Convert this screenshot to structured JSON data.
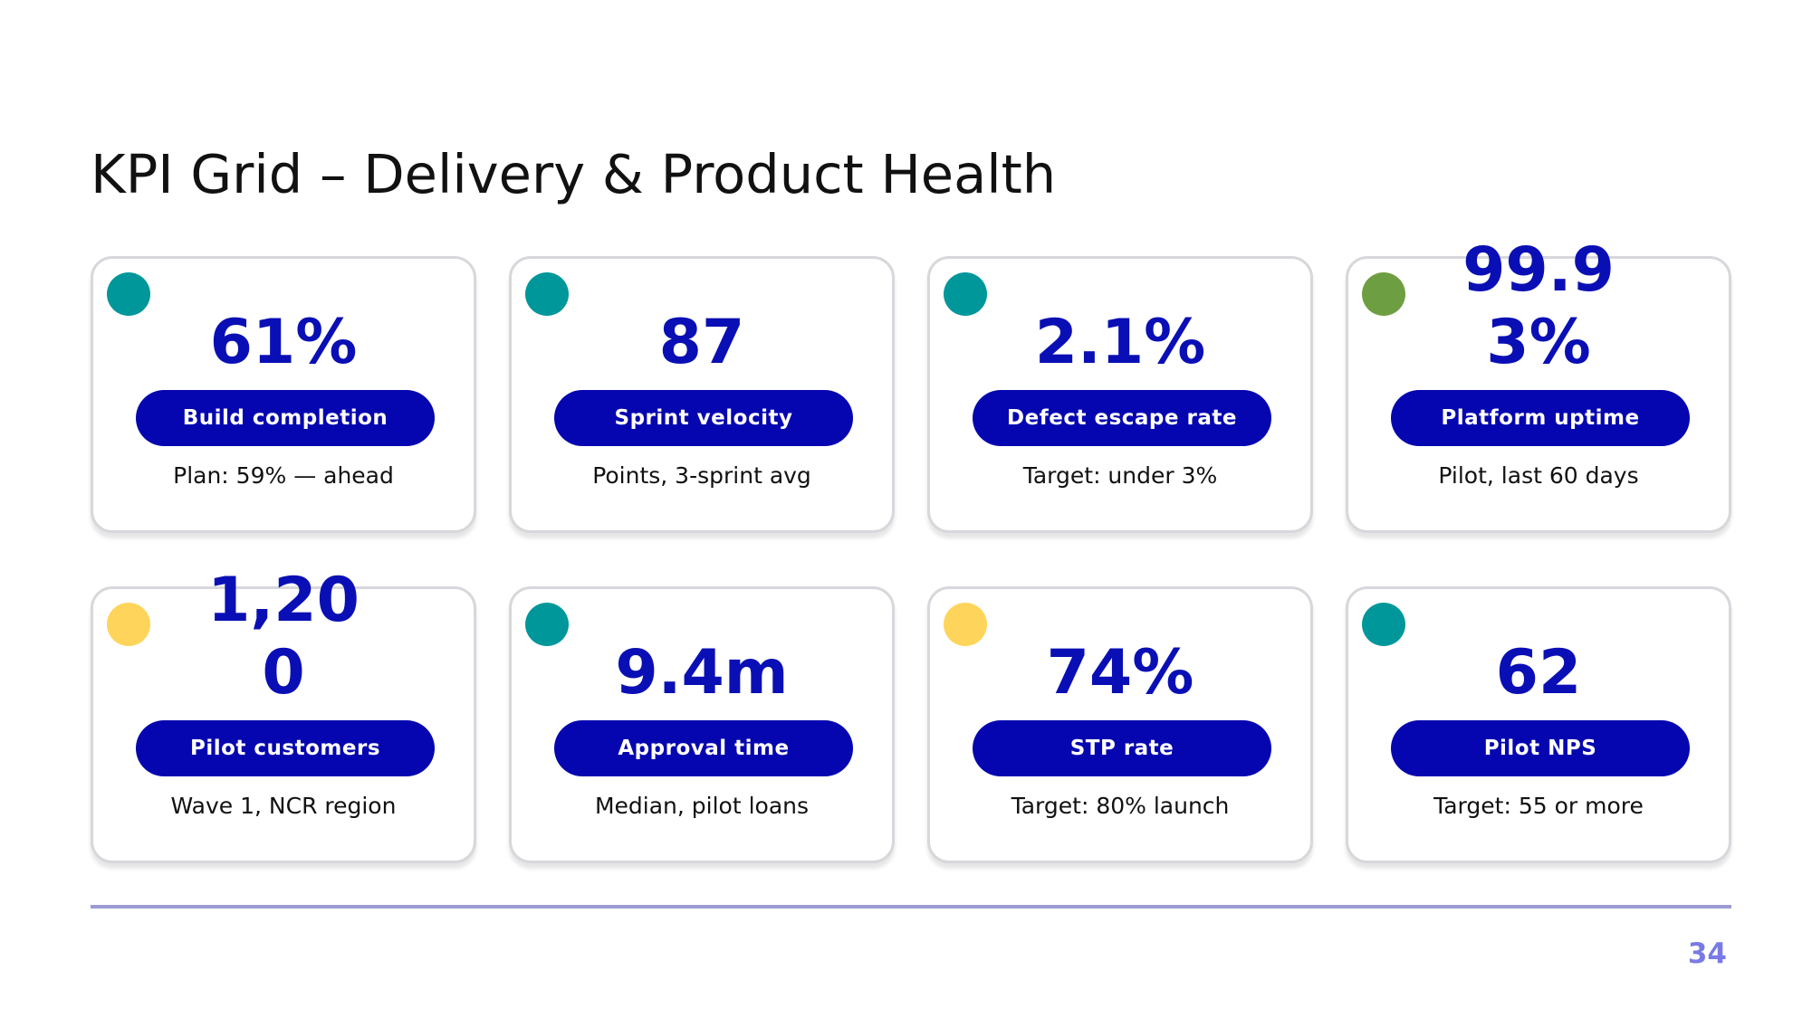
{
  "title": "KPI Grid – Delivery & Product Health",
  "page_number": "34",
  "colors": {
    "accent": "#0606b0",
    "value_text": "#0a0fb5",
    "teal": "#00979a",
    "green": "#6e9e42",
    "yellow": "#ffd45a",
    "rule": "#9b9bd3",
    "page_number": "#7a7ae6"
  },
  "kpis": [
    {
      "value": "61%",
      "label": "Build completion",
      "note": "Plan: 59% — ahead",
      "status": "teal",
      "status_color": "#00979a"
    },
    {
      "value": "87",
      "label": "Sprint velocity",
      "note": "Points, 3-sprint avg",
      "status": "teal",
      "status_color": "#00979a"
    },
    {
      "value": "2.1%",
      "label": "Defect escape rate",
      "note": "Target: under 3%",
      "status": "teal",
      "status_color": "#00979a"
    },
    {
      "value": "99.93%",
      "label": "Platform uptime",
      "note": "Pilot, last 60 days",
      "status": "green",
      "status_color": "#6e9e42"
    },
    {
      "value": "1,200",
      "label": "Pilot customers",
      "note": "Wave 1, NCR region",
      "status": "yellow",
      "status_color": "#ffd45a"
    },
    {
      "value": "9.4m",
      "label": "Approval time",
      "note": "Median, pilot loans",
      "status": "teal",
      "status_color": "#00979a"
    },
    {
      "value": "74%",
      "label": "STP rate",
      "note": "Target: 80% launch",
      "status": "yellow",
      "status_color": "#ffd45a"
    },
    {
      "value": "62",
      "label": "Pilot NPS",
      "note": "Target: 55 or more",
      "status": "teal",
      "status_color": "#00979a"
    }
  ]
}
